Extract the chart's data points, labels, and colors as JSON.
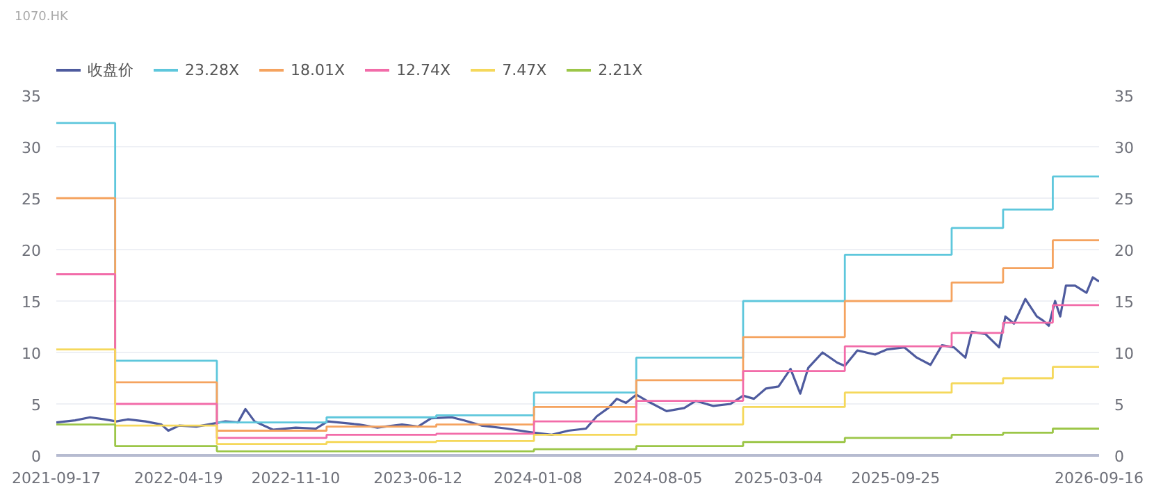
{
  "chart_data": {
    "type": "line",
    "title": "1070.HK",
    "legend": "top left",
    "grid": "y",
    "marker": "none",
    "line_style": "solid",
    "xlim": [
      "2021-09-17",
      "2026-09-16"
    ],
    "xticks": [
      "2021-09-17",
      "2022-04-19",
      "2022-11-10",
      "2023-06-12",
      "2024-01-08",
      "2024-08-05",
      "2025-03-04",
      "2025-09-25",
      "2026-09-16"
    ],
    "ylim": [
      0,
      35
    ],
    "yticks": [
      0,
      5,
      10,
      15,
      20,
      25,
      30,
      35
    ],
    "y2lim": [
      0,
      35
    ],
    "y2ticks": [
      0,
      5,
      10,
      15,
      20,
      25,
      30,
      35
    ],
    "series": [
      {
        "name": "收盘价",
        "color": "#4e5b9e",
        "x": [
          "2021-09-17",
          "2021-10-20",
          "2021-11-15",
          "2021-12-10",
          "2021-12-31",
          "2022-01-20",
          "2022-02-20",
          "2022-03-20",
          "2022-04-01",
          "2022-04-20",
          "2022-05-20",
          "2022-06-20",
          "2022-07-10",
          "2022-08-01",
          "2022-08-14",
          "2022-08-30",
          "2022-10-01",
          "2022-11-10",
          "2022-12-15",
          "2023-01-05",
          "2023-03-01",
          "2023-04-01",
          "2023-05-15",
          "2023-06-12",
          "2023-07-05",
          "2023-08-10",
          "2023-09-01",
          "2023-10-01",
          "2023-11-15",
          "2024-01-01",
          "2024-02-01",
          "2024-03-01",
          "2024-04-01",
          "2024-04-20",
          "2024-05-10",
          "2024-05-25",
          "2024-06-10",
          "2024-06-28",
          "2024-07-20",
          "2024-08-20",
          "2024-09-20",
          "2024-10-10",
          "2024-11-10",
          "2024-12-10",
          "2025-01-01",
          "2025-01-20",
          "2025-02-10",
          "2025-03-04",
          "2025-03-25",
          "2025-04-11",
          "2025-04-25",
          "2025-05-20",
          "2025-06-15",
          "2025-06-28",
          "2025-07-20",
          "2025-08-20",
          "2025-09-10",
          "2025-10-10",
          "2025-11-01",
          "2025-11-25",
          "2025-12-15",
          "2026-01-05",
          "2026-01-25",
          "2026-02-05",
          "2026-03-01",
          "2026-03-25",
          "2026-04-05",
          "2026-04-20",
          "2026-05-10",
          "2026-05-30",
          "2026-06-10",
          "2026-06-20",
          "2026-07-01",
          "2026-07-10",
          "2026-07-20",
          "2026-08-05",
          "2026-08-25",
          "2026-09-05",
          "2026-09-16"
        ],
        "values": [
          3.2,
          3.4,
          3.7,
          3.5,
          3.3,
          3.5,
          3.3,
          3.0,
          2.4,
          2.9,
          2.8,
          3.1,
          3.3,
          3.2,
          4.5,
          3.3,
          2.5,
          2.7,
          2.6,
          3.3,
          3.0,
          2.7,
          3.0,
          2.8,
          3.6,
          3.7,
          3.4,
          2.9,
          2.6,
          2.2,
          2.0,
          2.4,
          2.6,
          3.8,
          4.6,
          5.5,
          5.1,
          5.9,
          5.2,
          4.3,
          4.6,
          5.3,
          4.8,
          5.0,
          5.8,
          5.5,
          6.5,
          6.7,
          8.4,
          6.0,
          8.5,
          10.0,
          9.0,
          8.7,
          10.2,
          9.8,
          10.3,
          10.5,
          9.5,
          8.8,
          10.7,
          10.5,
          9.5,
          12.0,
          11.8,
          10.5,
          13.5,
          12.8,
          15.2,
          13.5,
          13.1,
          12.6,
          15.0,
          13.5,
          16.5,
          16.5,
          15.8,
          17.3,
          16.9
        ]
      },
      {
        "name": "23.28X",
        "type": "step",
        "color": "#5ec7dc",
        "x": [
          "2021-09-17",
          "2021-12-29",
          "2022-06-25",
          "2023-01-03",
          "2023-07-14",
          "2024-01-01",
          "2024-06-28",
          "2025-01-01",
          "2025-06-28",
          "2026-01-01",
          "2026-04-01",
          "2026-06-27",
          "2026-09-16"
        ],
        "values": [
          32.3,
          9.2,
          3.2,
          3.7,
          3.9,
          6.1,
          9.5,
          15.0,
          19.5,
          22.1,
          23.9,
          27.1,
          27.1
        ]
      },
      {
        "name": "18.01X",
        "type": "step",
        "color": "#f5a35f",
        "x": [
          "2021-09-17",
          "2021-12-29",
          "2022-06-25",
          "2023-01-03",
          "2023-07-14",
          "2024-01-01",
          "2024-06-28",
          "2025-01-01",
          "2025-06-28",
          "2026-01-01",
          "2026-04-01",
          "2026-06-27",
          "2026-09-16"
        ],
        "values": [
          25.0,
          7.1,
          2.4,
          2.8,
          3.0,
          4.7,
          7.3,
          11.5,
          15.0,
          16.8,
          18.2,
          20.9,
          20.9
        ]
      },
      {
        "name": "12.74X",
        "type": "step",
        "color": "#f26ca9",
        "x": [
          "2021-09-17",
          "2021-12-29",
          "2022-06-25",
          "2023-01-03",
          "2023-07-14",
          "2024-01-01",
          "2024-06-28",
          "2025-01-01",
          "2025-06-28",
          "2026-01-01",
          "2026-04-01",
          "2026-06-27",
          "2026-09-16"
        ],
        "values": [
          17.6,
          5.0,
          1.7,
          2.0,
          2.1,
          3.3,
          5.3,
          8.2,
          10.6,
          11.9,
          12.9,
          14.6,
          14.6
        ]
      },
      {
        "name": "7.47X",
        "type": "step",
        "color": "#f5d85b",
        "x": [
          "2021-09-17",
          "2021-12-29",
          "2022-06-25",
          "2023-01-03",
          "2023-07-14",
          "2024-01-01",
          "2024-06-28",
          "2025-01-01",
          "2025-06-28",
          "2026-01-01",
          "2026-04-01",
          "2026-06-27",
          "2026-09-16"
        ],
        "values": [
          10.3,
          2.9,
          1.1,
          1.3,
          1.4,
          2.0,
          3.0,
          4.7,
          6.1,
          7.0,
          7.5,
          8.6,
          8.6
        ]
      },
      {
        "name": "2.21X",
        "type": "step",
        "color": "#9cc648",
        "x": [
          "2021-09-17",
          "2021-12-29",
          "2022-06-25",
          "2023-01-03",
          "2023-07-14",
          "2024-01-01",
          "2024-06-28",
          "2025-01-01",
          "2025-06-28",
          "2026-01-01",
          "2026-04-01",
          "2026-06-27",
          "2026-09-16"
        ],
        "values": [
          3.0,
          0.9,
          0.4,
          0.4,
          0.4,
          0.6,
          0.9,
          1.3,
          1.7,
          2.0,
          2.2,
          2.6,
          2.6
        ]
      }
    ]
  }
}
